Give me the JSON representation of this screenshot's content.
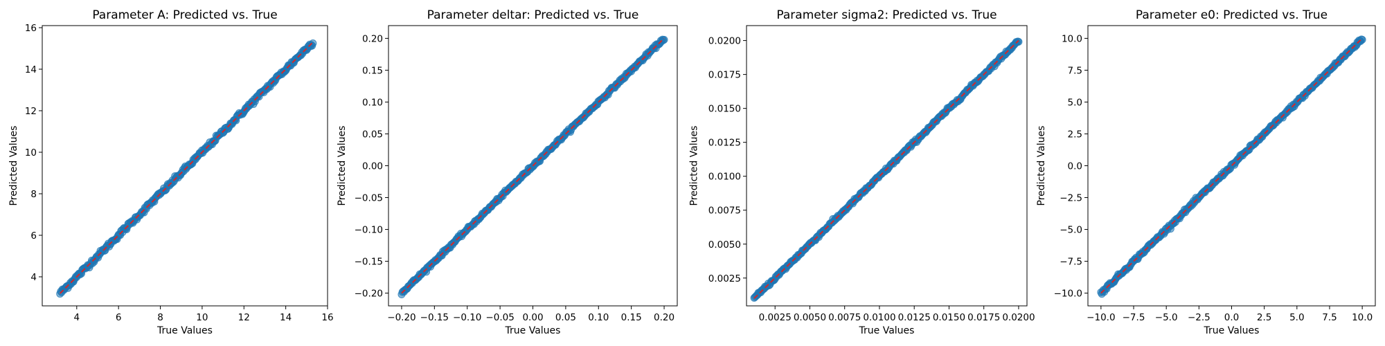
{
  "chart_data": [
    {
      "type": "scatter",
      "title": "Parameter A: Predicted vs. True",
      "xlabel": "True Values",
      "ylabel": "Predicted Values",
      "xlim": [
        2.35,
        16.0
      ],
      "ylim": [
        2.6,
        16.1
      ],
      "xticks": [
        4,
        6,
        8,
        10,
        12,
        14,
        16
      ],
      "xtick_labels": [
        "4",
        "6",
        "8",
        "10",
        "12",
        "14",
        "16"
      ],
      "yticks": [
        4,
        6,
        8,
        10,
        12,
        14,
        16
      ],
      "ytick_labels": [
        "4",
        "6",
        "8",
        "10",
        "12",
        "14",
        "16"
      ],
      "data_range": [
        3.2,
        15.3
      ],
      "noise": 0.06,
      "reference_line": {
        "style": "dashed",
        "color": "#d62728",
        "from": 3.2,
        "to": 15.3
      }
    },
    {
      "type": "scatter",
      "title": "Parameter deltar: Predicted vs. True",
      "xlabel": "True Values",
      "ylabel": "Predicted Values",
      "xlim": [
        -0.22,
        0.22
      ],
      "ylim": [
        -0.22,
        0.22
      ],
      "xticks": [
        -0.2,
        -0.15,
        -0.1,
        -0.05,
        0.0,
        0.05,
        0.1,
        0.15,
        0.2
      ],
      "xtick_labels": [
        "−0.20",
        "−0.15",
        "−0.10",
        "−0.05",
        "0.00",
        "0.05",
        "0.10",
        "0.15",
        "0.20"
      ],
      "yticks": [
        -0.2,
        -0.15,
        -0.1,
        -0.05,
        0.0,
        0.05,
        0.1,
        0.15,
        0.2
      ],
      "ytick_labels": [
        "−0.20",
        "−0.15",
        "−0.10",
        "−0.05",
        "0.00",
        "0.05",
        "0.10",
        "0.15",
        "0.20"
      ],
      "data_range": [
        -0.2,
        0.2
      ],
      "noise": 0.0012,
      "reference_line": {
        "style": "dashed",
        "color": "#d62728",
        "from": -0.2,
        "to": 0.2
      }
    },
    {
      "type": "scatter",
      "title": "Parameter sigma2: Predicted vs. True",
      "xlabel": "True Values",
      "ylabel": "Predicted Values",
      "xlim": [
        0.00045,
        0.0206
      ],
      "ylim": [
        0.00045,
        0.0211
      ],
      "xticks": [
        0.0025,
        0.005,
        0.0075,
        0.01,
        0.0125,
        0.015,
        0.0175,
        0.02
      ],
      "xtick_labels": [
        "0.0025",
        "0.0050",
        "0.0075",
        "0.0100",
        "0.0125",
        "0.0150",
        "0.0175",
        "0.0200"
      ],
      "yticks": [
        0.0025,
        0.005,
        0.0075,
        0.01,
        0.0125,
        0.015,
        0.0175,
        0.02
      ],
      "ytick_labels": [
        "0.0025",
        "0.0050",
        "0.0075",
        "0.0100",
        "0.0125",
        "0.0150",
        "0.0175",
        "0.0200"
      ],
      "data_range": [
        0.001,
        0.02
      ],
      "noise": 6e-05,
      "reference_line": {
        "style": "dashed",
        "color": "#d62728",
        "from": 0.001,
        "to": 0.02
      }
    },
    {
      "type": "scatter",
      "title": "Parameter e0: Predicted vs. True",
      "xlabel": "True Values",
      "ylabel": "Predicted Values",
      "xlim": [
        -11.0,
        11.0
      ],
      "ylim": [
        -11.0,
        11.0
      ],
      "xticks": [
        -10,
        -7.5,
        -5,
        -2.5,
        0,
        2.5,
        5,
        7.5,
        10
      ],
      "xtick_labels": [
        "−10.0",
        "−7.5",
        "−5.0",
        "−2.5",
        "0.0",
        "2.5",
        "5.0",
        "7.5",
        "10.0"
      ],
      "yticks": [
        -10,
        -7.5,
        -5,
        -2.5,
        0,
        2.5,
        5,
        7.5,
        10
      ],
      "ytick_labels": [
        "−10.0",
        "−7.5",
        "−5.0",
        "−2.5",
        "0.0",
        "2.5",
        "5.0",
        "7.5",
        "10.0"
      ],
      "data_range": [
        -10,
        10
      ],
      "noise": 0.07,
      "reference_line": {
        "style": "dashed",
        "color": "#d62728",
        "from": -10,
        "to": 10
      }
    }
  ]
}
